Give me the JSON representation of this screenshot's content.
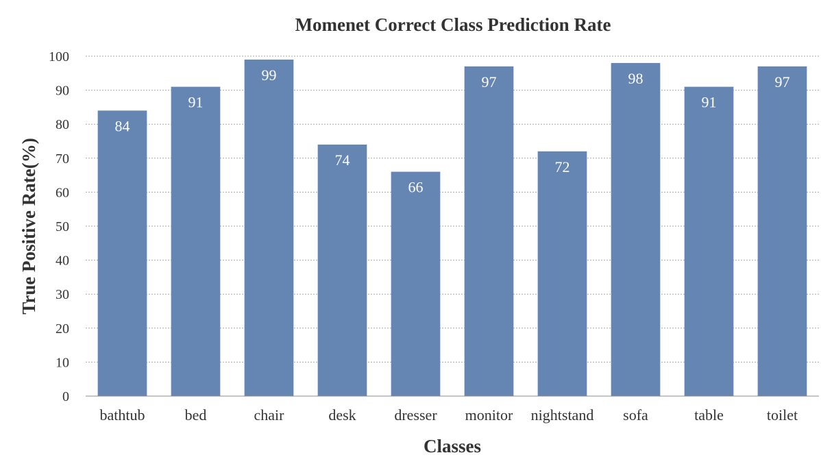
{
  "chart_data": {
    "type": "bar",
    "title": "Momenet Correct Class Prediction Rate",
    "xlabel": "Classes",
    "ylabel": "True Positive Rate(%)",
    "categories": [
      "bathtub",
      "bed",
      "chair",
      "desk",
      "dresser",
      "monitor",
      "nightstand",
      "sofa",
      "table",
      "toilet"
    ],
    "values": [
      84,
      91,
      99,
      74,
      66,
      97,
      72,
      98,
      91,
      97
    ],
    "ylim": [
      0,
      100
    ],
    "yticks": [
      0,
      10,
      20,
      30,
      40,
      50,
      60,
      70,
      80,
      90,
      100
    ],
    "grid": true,
    "data_labels": true,
    "legend": "none",
    "colors": {
      "bar": "#6585b3",
      "label": "#ffffff",
      "text": "#333333"
    }
  }
}
